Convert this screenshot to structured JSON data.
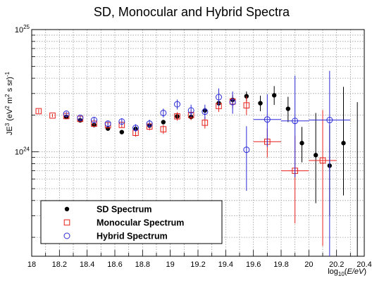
{
  "chart_data": {
    "type": "scatter",
    "title": "SD, Monocular and Hybrid Spectra",
    "xlabel": "log10(E/eV)",
    "ylabel": "JE3 (eV2 m2 s sr)-1",
    "xlim": [
      18.0,
      20.4
    ],
    "ylim": [
      1.4e+23,
      1e+25
    ],
    "yscale": "log",
    "grid": true,
    "legend": "bottom-left",
    "x_ticks": [
      "18",
      "18.2",
      "18.4",
      "18.6",
      "18.8",
      "19",
      "19.2",
      "19.4",
      "19.6",
      "19.8",
      "20",
      "20.2",
      "20.4"
    ],
    "y_ticks": [
      "10^24",
      "10^25"
    ],
    "series": [
      {
        "name": "SD Spectrum",
        "marker": "filled-circle",
        "color": "#000000",
        "points": [
          {
            "x": 18.25,
            "y": 1.93e+24,
            "lo": 1.88e+24,
            "hi": 1.98e+24
          },
          {
            "x": 18.35,
            "y": 1.81e+24,
            "lo": 1.77e+24,
            "hi": 1.85e+24
          },
          {
            "x": 18.45,
            "y": 1.66e+24,
            "lo": 1.62e+24,
            "hi": 1.7e+24
          },
          {
            "x": 18.55,
            "y": 1.55e+24,
            "lo": 1.51e+24,
            "hi": 1.59e+24
          },
          {
            "x": 18.65,
            "y": 1.45e+24,
            "lo": 1.41e+24,
            "hi": 1.49e+24
          },
          {
            "x": 18.75,
            "y": 1.54e+24,
            "lo": 1.49e+24,
            "hi": 1.59e+24
          },
          {
            "x": 18.85,
            "y": 1.64e+24,
            "lo": 1.58e+24,
            "hi": 1.7e+24
          },
          {
            "x": 18.95,
            "y": 1.75e+24,
            "lo": 1.68e+24,
            "hi": 1.82e+24
          },
          {
            "x": 19.05,
            "y": 1.95e+24,
            "lo": 1.87e+24,
            "hi": 2.03e+24
          },
          {
            "x": 19.15,
            "y": 1.93e+24,
            "lo": 1.84e+24,
            "hi": 2.04e+24
          },
          {
            "x": 19.25,
            "y": 2.18e+24,
            "lo": 2.06e+24,
            "hi": 2.3e+24
          },
          {
            "x": 19.35,
            "y": 2.5e+24,
            "lo": 2.34e+24,
            "hi": 2.66e+24
          },
          {
            "x": 19.45,
            "y": 2.66e+24,
            "lo": 2.46e+24,
            "hi": 2.88e+24
          },
          {
            "x": 19.55,
            "y": 2.85e+24,
            "lo": 2.58e+24,
            "hi": 3.12e+24
          },
          {
            "x": 19.65,
            "y": 2.5e+24,
            "lo": 2.15e+24,
            "hi": 2.88e+24
          },
          {
            "x": 19.75,
            "y": 2.9e+24,
            "lo": 2.42e+24,
            "hi": 3.45e+24
          },
          {
            "x": 19.85,
            "y": 2.25e+24,
            "lo": 1.75e+24,
            "hi": 2.82e+24
          },
          {
            "x": 19.95,
            "y": 1.18e+24,
            "lo": 8.2e+23,
            "hi": 1.6e+24
          },
          {
            "x": 20.05,
            "y": 9.4e+23,
            "lo": 3.8e+23,
            "hi": 2.08e+24
          },
          {
            "x": 20.15,
            "y": 7.7e+23,
            "lo": 3e+23,
            "hi": 1.65e+24
          },
          {
            "x": 20.25,
            "y": 1.18e+24,
            "lo": 4.4e+23,
            "hi": 3.4e+24
          },
          {
            "x": 20.35,
            "y": null,
            "lo": 1.4e+23,
            "hi": 2.55e+24
          }
        ]
      },
      {
        "name": "Monocular Spectrum",
        "marker": "open-square",
        "color": "#e8211b",
        "points": [
          {
            "x": 18.05,
            "y": 2.15e+24,
            "lo": 2.07e+24,
            "hi": 2.23e+24
          },
          {
            "x": 18.15,
            "y": 1.98e+24,
            "lo": 1.92e+24,
            "hi": 2.04e+24
          },
          {
            "x": 18.25,
            "y": 1.96e+24,
            "lo": 1.9e+24,
            "hi": 2.02e+24
          },
          {
            "x": 18.35,
            "y": 1.86e+24,
            "lo": 1.8e+24,
            "hi": 1.92e+24
          },
          {
            "x": 18.45,
            "y": 1.7e+24,
            "lo": 1.64e+24,
            "hi": 1.76e+24
          },
          {
            "x": 18.55,
            "y": 1.65e+24,
            "lo": 1.58e+24,
            "hi": 1.72e+24
          },
          {
            "x": 18.65,
            "y": 1.66e+24,
            "lo": 1.58e+24,
            "hi": 1.74e+24
          },
          {
            "x": 18.75,
            "y": 1.43e+24,
            "lo": 1.33e+24,
            "hi": 1.53e+24
          },
          {
            "x": 18.85,
            "y": 1.61e+24,
            "lo": 1.5e+24,
            "hi": 1.73e+24
          },
          {
            "x": 18.95,
            "y": 1.53e+24,
            "lo": 1.4e+24,
            "hi": 1.66e+24
          },
          {
            "x": 19.05,
            "y": 1.95e+24,
            "lo": 1.8e+24,
            "hi": 2.11e+24
          },
          {
            "x": 19.15,
            "y": 2e+24,
            "lo": 1.82e+24,
            "hi": 2.19e+24
          },
          {
            "x": 19.25,
            "y": 1.73e+24,
            "lo": 1.55e+24,
            "hi": 1.93e+24
          },
          {
            "x": 19.35,
            "y": 2.37e+24,
            "lo": 2.12e+24,
            "hi": 2.63e+24
          },
          {
            "x": 19.45,
            "y": 2.58e+24,
            "lo": 2.25e+24,
            "hi": 2.93e+24
          },
          {
            "x": 19.55,
            "y": 2.4e+24,
            "lo": 2e+24,
            "hi": 2.85e+24
          },
          {
            "x": 19.7,
            "y": 1.21e+24,
            "lo": 9e+23,
            "hi": 1.56e+24,
            "xerr": 0.1
          },
          {
            "x": 19.9,
            "y": 7e+23,
            "lo": 2.6e+23,
            "hi": 1.35e+24,
            "xerr": 0.1
          },
          {
            "x": 20.1,
            "y": 8.5e+23,
            "lo": 1.7e+23,
            "hi": 2.2e+24,
            "xerr": 0.1
          }
        ]
      },
      {
        "name": "Hybrid Spectrum",
        "marker": "open-circle",
        "color": "#2b2bd8",
        "points": [
          {
            "x": 18.25,
            "y": 2.05e+24,
            "lo": 1.97e+24,
            "hi": 2.13e+24
          },
          {
            "x": 18.35,
            "y": 1.9e+24,
            "lo": 1.82e+24,
            "hi": 1.98e+24
          },
          {
            "x": 18.45,
            "y": 1.82e+24,
            "lo": 1.73e+24,
            "hi": 1.91e+24
          },
          {
            "x": 18.55,
            "y": 1.7e+24,
            "lo": 1.6e+24,
            "hi": 1.8e+24
          },
          {
            "x": 18.65,
            "y": 1.77e+24,
            "lo": 1.66e+24,
            "hi": 1.88e+24
          },
          {
            "x": 18.75,
            "y": 1.57e+24,
            "lo": 1.46e+24,
            "hi": 1.68e+24
          },
          {
            "x": 18.85,
            "y": 1.7e+24,
            "lo": 1.57e+24,
            "hi": 1.83e+24
          },
          {
            "x": 18.95,
            "y": 2.08e+24,
            "lo": 1.91e+24,
            "hi": 2.26e+24
          },
          {
            "x": 19.05,
            "y": 2.45e+24,
            "lo": 2.22e+24,
            "hi": 2.68e+24
          },
          {
            "x": 19.15,
            "y": 2.18e+24,
            "lo": 1.94e+24,
            "hi": 2.43e+24
          },
          {
            "x": 19.25,
            "y": 2.13e+24,
            "lo": 1.85e+24,
            "hi": 2.43e+24
          },
          {
            "x": 19.35,
            "y": 2.8e+24,
            "lo": 2.38e+24,
            "hi": 3.3e+24
          },
          {
            "x": 19.45,
            "y": 2.55e+24,
            "lo": 2.05e+24,
            "hi": 3.12e+24
          },
          {
            "x": 19.55,
            "y": 1.04e+24,
            "lo": 4.8e+23,
            "hi": 1.62e+24
          },
          {
            "x": 19.7,
            "y": 1.84e+24,
            "lo": 1.1e+24,
            "hi": 2.95e+24,
            "xerr": 0.1
          },
          {
            "x": 19.9,
            "y": 1.79e+24,
            "lo": 6.2e+23,
            "hi": 4.2e+24,
            "xerr": 0.1
          },
          {
            "x": 20.15,
            "y": 1.82e+24,
            "lo": 1.4e+23,
            "hi": 4.6e+24,
            "xerr": 0.15
          }
        ]
      }
    ]
  }
}
